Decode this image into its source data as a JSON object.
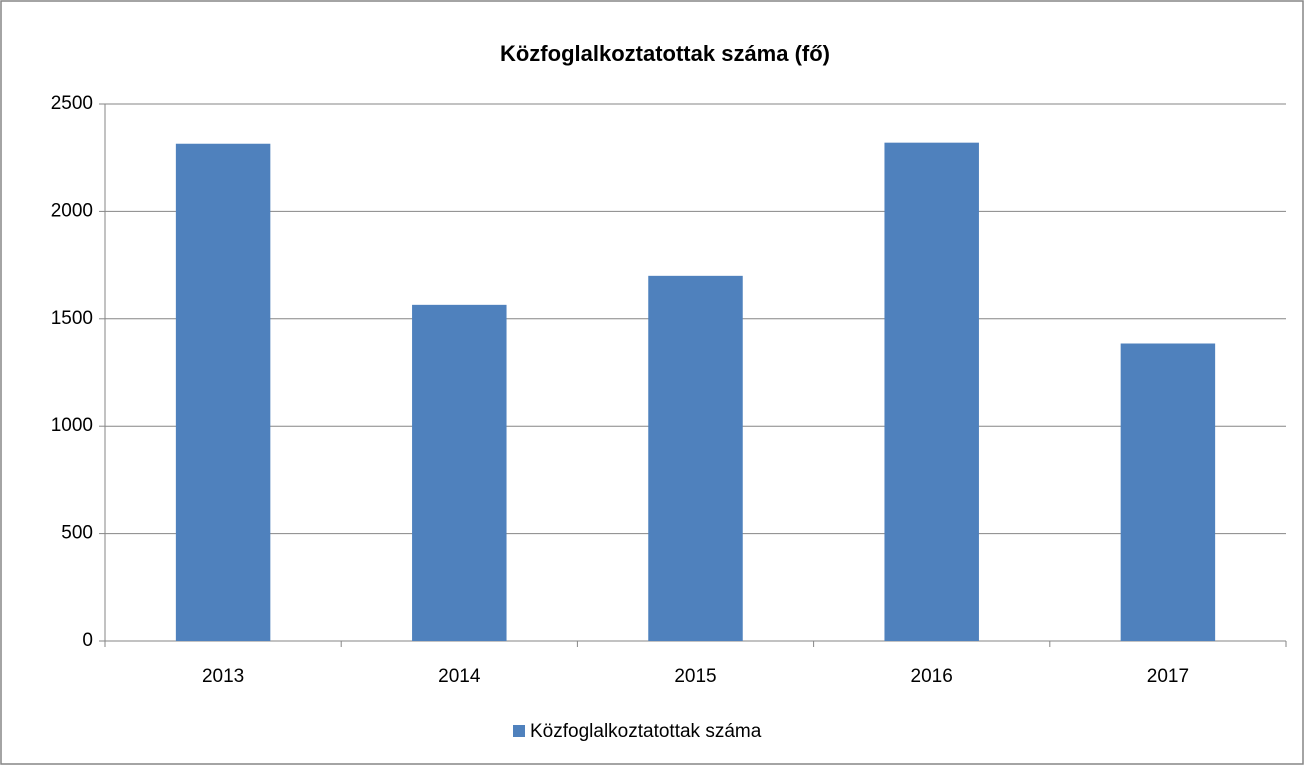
{
  "chart_data": {
    "type": "bar",
    "title": "Közfoglalkoztatottak száma (fő)",
    "categories": [
      "2013",
      "2014",
      "2015",
      "2016",
      "2017"
    ],
    "series": [
      {
        "name": "Közfoglalkoztatottak száma",
        "color": "#4f81bd",
        "values": [
          2315,
          1565,
          1700,
          2320,
          1385
        ]
      }
    ],
    "ylim": [
      0,
      2500
    ],
    "yticks": [
      0,
      500,
      1000,
      1500,
      2000,
      2500
    ],
    "grid": true,
    "legend": "bottom"
  }
}
